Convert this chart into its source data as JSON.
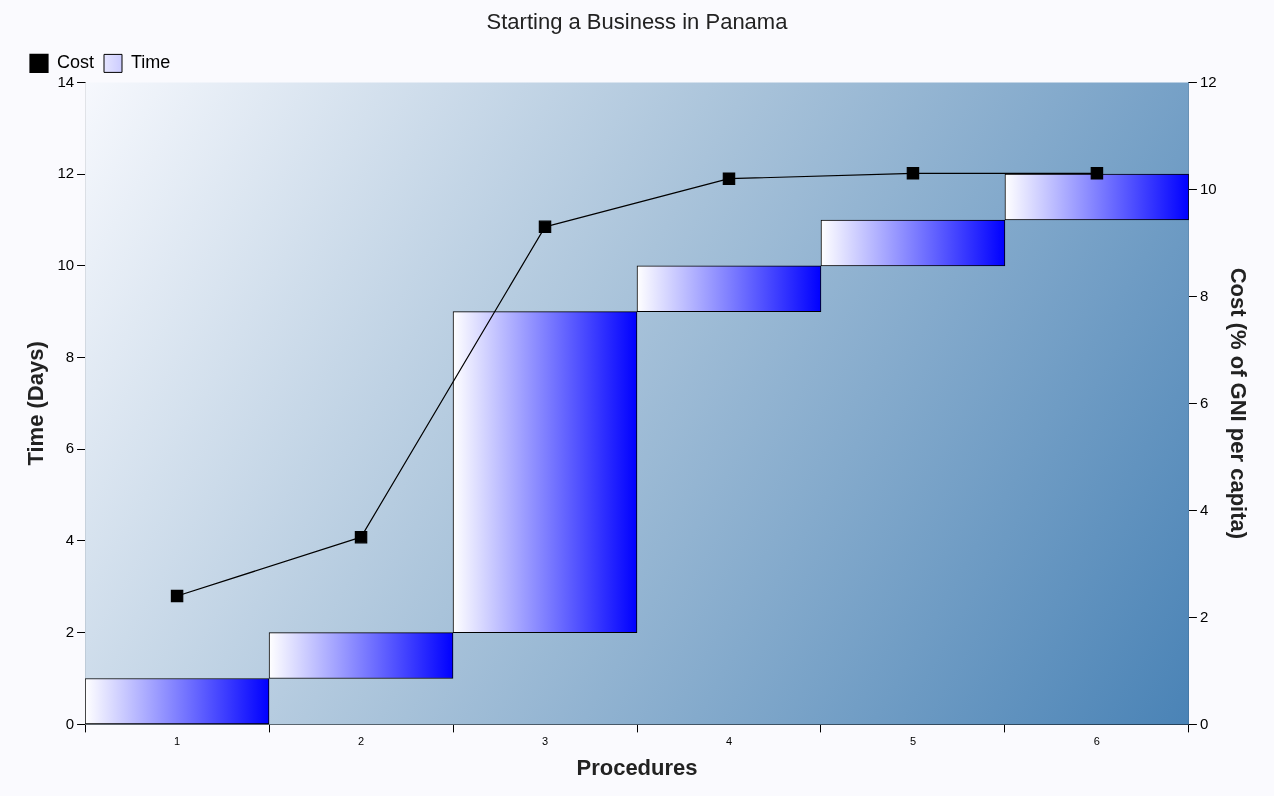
{
  "chart_data": {
    "type": "bar",
    "title": "Starting a Business in Panama",
    "xlabel": "Procedures",
    "ylabel": "Time (Days)",
    "y2label": "Cost (% of GNI per capita)",
    "categories": [
      "1",
      "2",
      "3",
      "4",
      "5",
      "6"
    ],
    "series": [
      {
        "name": "Cost",
        "type": "line",
        "axis": "y2",
        "color": "#000000",
        "values": [
          2.4,
          3.5,
          9.3,
          10.2,
          10.3,
          10.3
        ]
      },
      {
        "name": "Time",
        "color": "#0000ff",
        "values": [
          1,
          1,
          7,
          1,
          1,
          1
        ],
        "base": [
          0,
          1,
          2,
          9,
          10,
          11
        ]
      }
    ],
    "ylim": [
      0,
      14
    ],
    "yticks": [
      0,
      2,
      4,
      6,
      8,
      10,
      12,
      14
    ],
    "y2lim": [
      0,
      12
    ],
    "y2ticks": [
      0,
      2,
      4,
      6,
      8,
      10,
      12
    ],
    "legend": "top left",
    "marker": "square",
    "grid": false
  }
}
